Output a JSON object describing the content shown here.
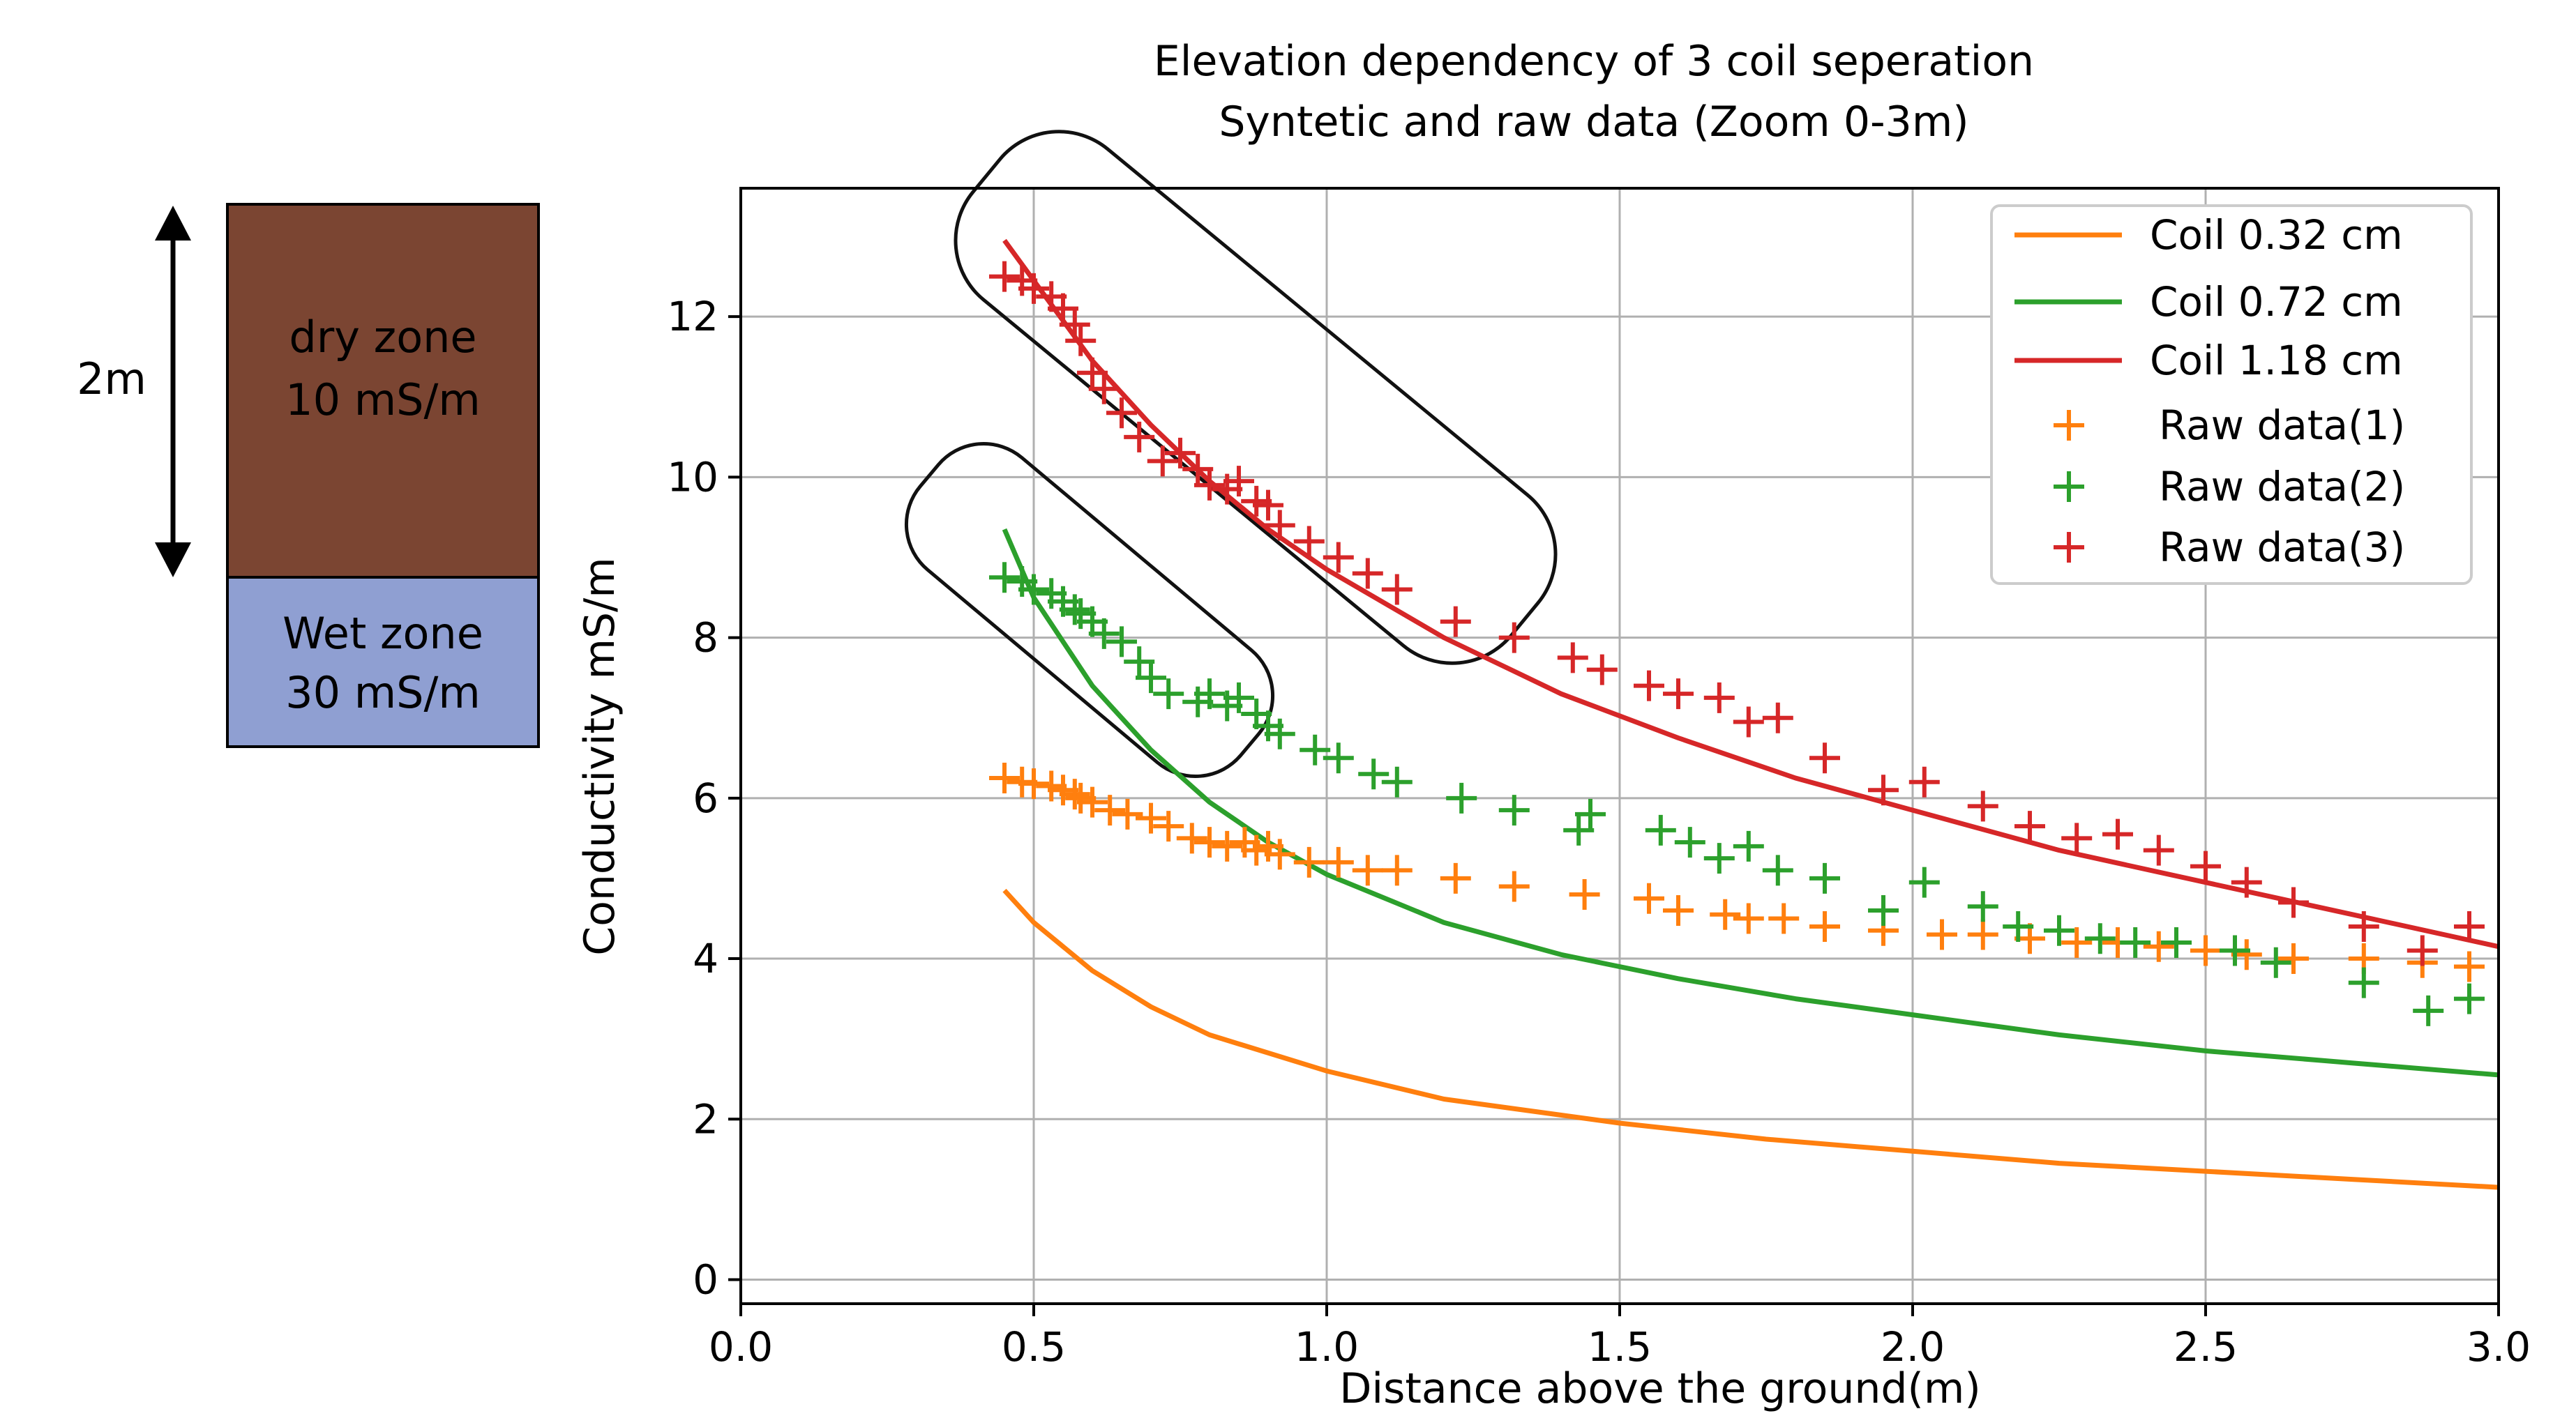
{
  "soil_diagram": {
    "depth_label": "2m",
    "dry_zone": {
      "line1": "dry zone",
      "line2": "10 mS/m",
      "color": "#7b4532"
    },
    "wet_zone": {
      "line1": "Wet zone",
      "line2": "30 mS/m",
      "color": "#8f9fd2"
    }
  },
  "chart_data": {
    "type": "line",
    "title": "Elevation dependency of 3 coil seperation",
    "subtitle": "Syntetic and raw data (Zoom 0-3m)",
    "xlabel": "Distance above the ground(m)",
    "ylabel": "Conductivity mS/m",
    "xlim": [
      0,
      3
    ],
    "ylim": [
      -0.3,
      13.6
    ],
    "xticks": [
      0,
      0.5,
      1,
      1.5,
      2,
      2.5,
      3
    ],
    "xtick_labels": [
      "0.0",
      "0.5",
      "1.0",
      "1.5",
      "2.0",
      "2.5",
      "3.0"
    ],
    "yticks": [
      0,
      2,
      4,
      6,
      8,
      10,
      12
    ],
    "ytick_labels": [
      "0",
      "2",
      "4",
      "6",
      "8",
      "10",
      "12"
    ],
    "grid": true,
    "legend_position": "top-right",
    "series": [
      {
        "name": "Coil 0.32 cm",
        "kind": "line",
        "color": "#ff7f0e",
        "x": [
          0.45,
          0.5,
          0.6,
          0.7,
          0.8,
          1.0,
          1.2,
          1.5,
          1.75,
          2.0,
          2.25,
          2.5,
          2.75,
          3.0
        ],
        "values": [
          4.85,
          4.45,
          3.85,
          3.4,
          3.05,
          2.6,
          2.25,
          1.95,
          1.75,
          1.6,
          1.45,
          1.35,
          1.25,
          1.15
        ]
      },
      {
        "name": "Coil 0.72 cm",
        "kind": "line",
        "color": "#2ca02c",
        "x": [
          0.45,
          0.5,
          0.6,
          0.7,
          0.8,
          0.9,
          1.0,
          1.2,
          1.4,
          1.6,
          1.8,
          2.0,
          2.25,
          2.5,
          2.75,
          3.0
        ],
        "values": [
          9.35,
          8.5,
          7.4,
          6.6,
          5.95,
          5.45,
          5.05,
          4.45,
          4.05,
          3.75,
          3.5,
          3.3,
          3.05,
          2.85,
          2.7,
          2.55
        ]
      },
      {
        "name": "Coil 1.18 cm",
        "kind": "line",
        "color": "#d62728",
        "x": [
          0.45,
          0.5,
          0.6,
          0.7,
          0.8,
          0.9,
          1.0,
          1.2,
          1.4,
          1.6,
          1.8,
          2.0,
          2.25,
          2.5,
          2.75,
          3.0
        ],
        "values": [
          12.95,
          12.45,
          11.45,
          10.65,
          9.95,
          9.35,
          8.85,
          8.0,
          7.3,
          6.75,
          6.25,
          5.85,
          5.35,
          4.95,
          4.55,
          4.15
        ]
      },
      {
        "name": "Raw data(1)",
        "kind": "scatter",
        "color": "#ff7f0e",
        "x": [
          0.45,
          0.48,
          0.5,
          0.53,
          0.55,
          0.57,
          0.58,
          0.6,
          0.63,
          0.66,
          0.7,
          0.73,
          0.77,
          0.8,
          0.83,
          0.86,
          0.88,
          0.9,
          0.92,
          0.97,
          1.02,
          1.07,
          1.12,
          1.22,
          1.32,
          1.44,
          1.55,
          1.6,
          1.68,
          1.72,
          1.78,
          1.85,
          1.95,
          2.05,
          2.12,
          2.2,
          2.28,
          2.35,
          2.42,
          2.5,
          2.57,
          2.65,
          2.77,
          2.87,
          2.95
        ],
        "values": [
          6.25,
          6.2,
          6.18,
          6.15,
          6.1,
          6.05,
          6.0,
          5.95,
          5.85,
          5.8,
          5.75,
          5.65,
          5.5,
          5.45,
          5.4,
          5.45,
          5.35,
          5.4,
          5.3,
          5.2,
          5.2,
          5.1,
          5.1,
          5.0,
          4.9,
          4.8,
          4.75,
          4.6,
          4.55,
          4.5,
          4.5,
          4.4,
          4.35,
          4.3,
          4.3,
          4.25,
          4.2,
          4.2,
          4.15,
          4.1,
          4.05,
          4.0,
          4.0,
          3.95,
          3.9
        ]
      },
      {
        "name": "Raw data(2)",
        "kind": "scatter",
        "color": "#2ca02c",
        "x": [
          0.45,
          0.48,
          0.5,
          0.53,
          0.55,
          0.57,
          0.58,
          0.6,
          0.62,
          0.65,
          0.68,
          0.7,
          0.73,
          0.78,
          0.8,
          0.83,
          0.85,
          0.88,
          0.9,
          0.92,
          0.98,
          1.02,
          1.08,
          1.12,
          1.23,
          1.32,
          1.43,
          1.45,
          1.57,
          1.62,
          1.67,
          1.72,
          1.77,
          1.85,
          1.95,
          2.02,
          2.12,
          2.18,
          2.25,
          2.32,
          2.38,
          2.45,
          2.55,
          2.62,
          2.77,
          2.88,
          2.95
        ],
        "values": [
          8.75,
          8.7,
          8.6,
          8.55,
          8.45,
          8.35,
          8.3,
          8.2,
          8.05,
          7.95,
          7.7,
          7.5,
          7.3,
          7.2,
          7.3,
          7.15,
          7.25,
          7.05,
          6.9,
          6.8,
          6.6,
          6.5,
          6.3,
          6.2,
          6.0,
          5.85,
          5.6,
          5.8,
          5.6,
          5.45,
          5.25,
          5.4,
          5.1,
          5.0,
          4.6,
          4.95,
          4.65,
          4.4,
          4.35,
          4.25,
          4.2,
          4.2,
          4.1,
          3.95,
          3.7,
          3.35,
          3.5
        ]
      },
      {
        "name": "Raw data(3)",
        "kind": "scatter",
        "color": "#d62728",
        "x": [
          0.45,
          0.48,
          0.5,
          0.53,
          0.55,
          0.57,
          0.58,
          0.6,
          0.62,
          0.65,
          0.68,
          0.72,
          0.75,
          0.78,
          0.8,
          0.83,
          0.85,
          0.88,
          0.9,
          0.92,
          0.97,
          1.02,
          1.07,
          1.12,
          1.22,
          1.32,
          1.42,
          1.47,
          1.55,
          1.6,
          1.67,
          1.72,
          1.77,
          1.85,
          1.95,
          2.02,
          2.12,
          2.2,
          2.28,
          2.35,
          2.42,
          2.5,
          2.57,
          2.65,
          2.77,
          2.87,
          2.95
        ],
        "values": [
          12.5,
          12.45,
          12.35,
          12.25,
          12.1,
          11.9,
          11.7,
          11.3,
          11.1,
          10.8,
          10.5,
          10.2,
          10.3,
          10.1,
          9.9,
          9.85,
          9.95,
          9.7,
          9.65,
          9.4,
          9.2,
          9.0,
          8.8,
          8.6,
          8.2,
          8.0,
          7.75,
          7.6,
          7.4,
          7.3,
          7.25,
          6.95,
          7.0,
          6.5,
          6.1,
          6.2,
          5.9,
          5.65,
          5.5,
          5.55,
          5.35,
          5.15,
          4.95,
          4.7,
          4.4,
          4.1,
          4.4
        ]
      }
    ]
  }
}
